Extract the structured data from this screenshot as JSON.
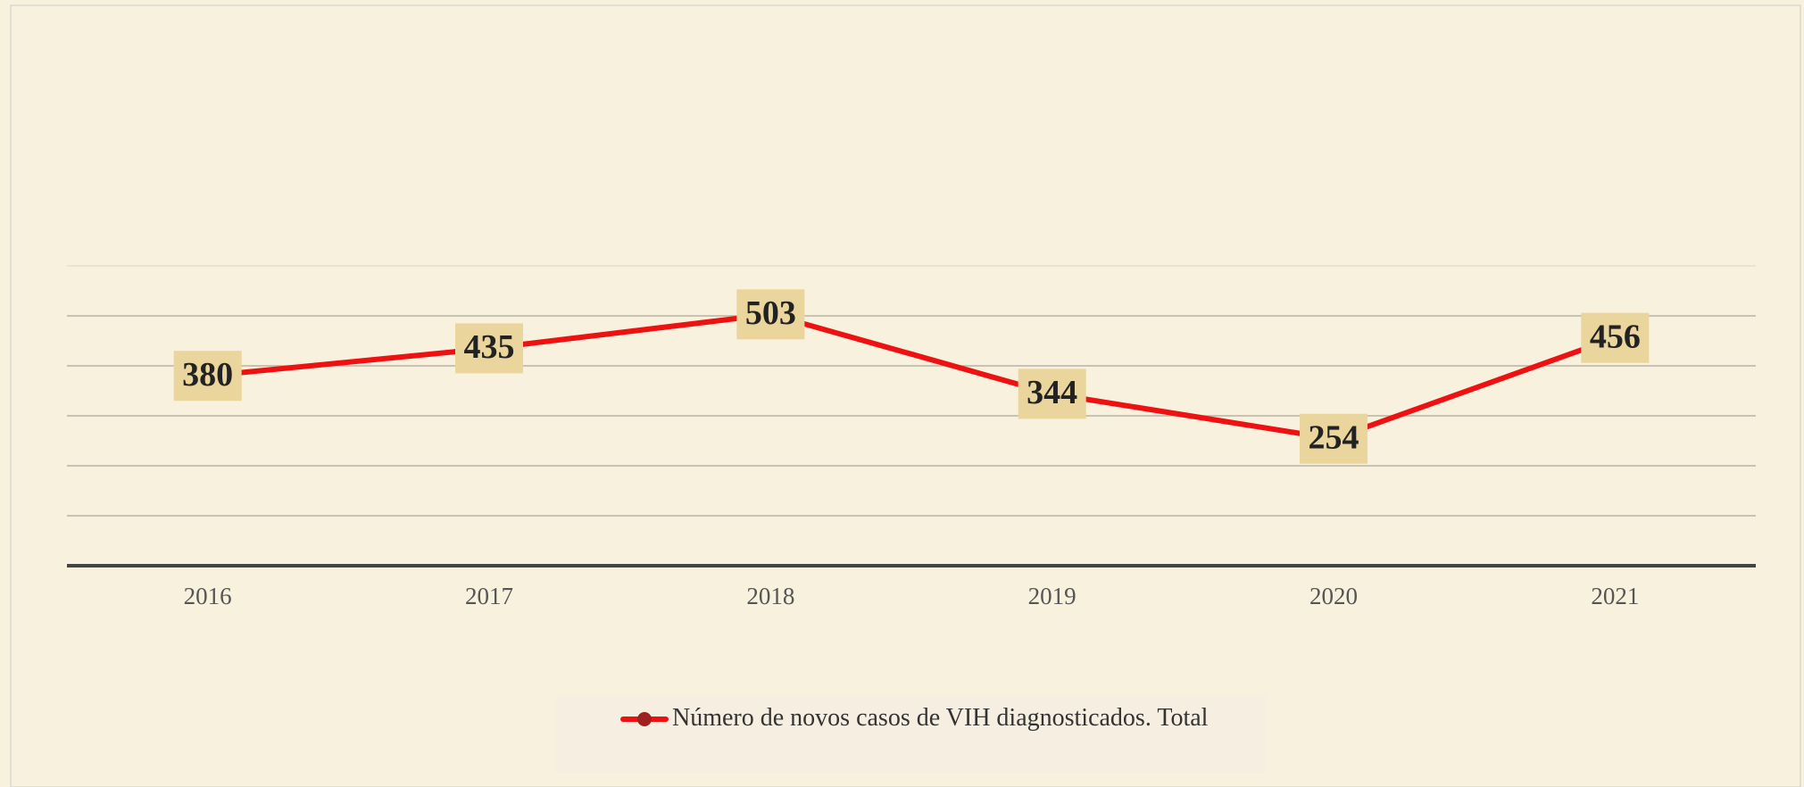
{
  "chart_data": {
    "type": "line",
    "categories": [
      "2016",
      "2017",
      "2018",
      "2019",
      "2020",
      "2021"
    ],
    "series": [
      {
        "name": "Número de novos casos de VIH diagnosticados. Total",
        "color": "#ee1111",
        "values": [
          380,
          435,
          503,
          344,
          254,
          456
        ]
      }
    ],
    "ylim": [
      0,
      600
    ],
    "yticks": [
      0,
      100,
      200,
      300,
      400,
      500,
      600
    ],
    "grid": true,
    "legend": "bottom"
  }
}
